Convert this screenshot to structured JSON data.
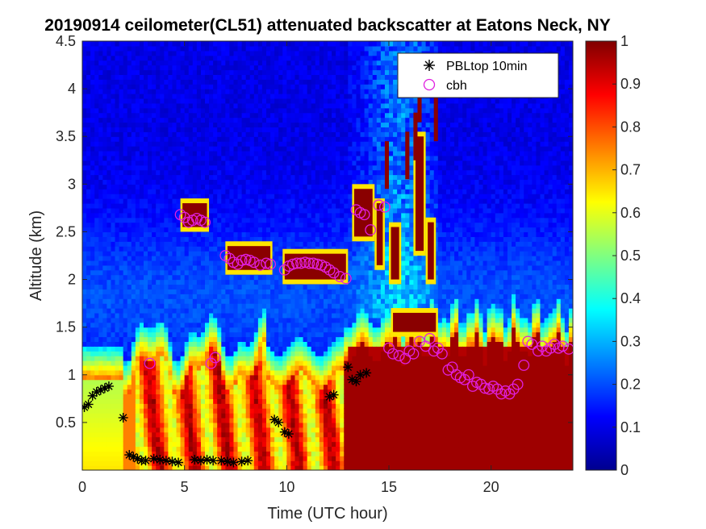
{
  "chart_data": {
    "type": "heatmap",
    "title": "20190914 ceilometer(CL51) attenuated backscatter at Eatons Neck, NY",
    "xlabel": "Time (UTC hour)",
    "ylabel": "Altitude (km)",
    "xlim": [
      0,
      24
    ],
    "ylim": [
      0,
      4.5
    ],
    "xticks": [
      0,
      5,
      10,
      15,
      20
    ],
    "xtick_labels": [
      "0",
      "5",
      "10",
      "15",
      "20"
    ],
    "yticks": [
      0.5,
      1,
      1.5,
      2,
      2.5,
      3,
      3.5,
      4,
      4.5
    ],
    "ytick_labels": [
      "0.5",
      "1",
      "1.5",
      "2",
      "2.5",
      "3",
      "3.5",
      "4",
      "4.5"
    ],
    "colorbar": {
      "colormap": "jet",
      "clim": [
        0,
        1
      ],
      "ticks": [
        0,
        0.1,
        0.2,
        0.3,
        0.4,
        0.5,
        0.6,
        0.7,
        0.8,
        0.9,
        1
      ],
      "tick_labels": [
        "0",
        "0.1",
        "0.2",
        "0.3",
        "0.4",
        "0.5",
        "0.6",
        "0.7",
        "0.8",
        "0.9",
        "1"
      ]
    },
    "legend": {
      "position": "top-right"
    },
    "series": [
      {
        "name": "PBLtop 10min",
        "marker": "asterisk",
        "color": "#000000",
        "points": [
          [
            0.1,
            0.66
          ],
          [
            0.3,
            0.69
          ],
          [
            0.5,
            0.78
          ],
          [
            0.7,
            0.82
          ],
          [
            0.9,
            0.84
          ],
          [
            1.1,
            0.86
          ],
          [
            1.3,
            0.88
          ],
          [
            2.0,
            0.55
          ],
          [
            2.3,
            0.16
          ],
          [
            2.5,
            0.14
          ],
          [
            2.7,
            0.12
          ],
          [
            2.9,
            0.1
          ],
          [
            3.1,
            0.1
          ],
          [
            3.5,
            0.12
          ],
          [
            3.8,
            0.11
          ],
          [
            4.1,
            0.1
          ],
          [
            4.4,
            0.09
          ],
          [
            4.7,
            0.08
          ],
          [
            5.5,
            0.11
          ],
          [
            5.8,
            0.1
          ],
          [
            6.1,
            0.11
          ],
          [
            6.4,
            0.1
          ],
          [
            6.8,
            0.1
          ],
          [
            7.1,
            0.09
          ],
          [
            7.4,
            0.08
          ],
          [
            7.8,
            0.09
          ],
          [
            8.1,
            0.1
          ],
          [
            9.4,
            0.53
          ],
          [
            9.6,
            0.5
          ],
          [
            9.9,
            0.4
          ],
          [
            10.1,
            0.38
          ],
          [
            12.1,
            0.77
          ],
          [
            12.3,
            0.79
          ],
          [
            13.0,
            1.08
          ],
          [
            13.2,
            0.95
          ],
          [
            13.4,
            0.93
          ],
          [
            13.6,
            1.0
          ],
          [
            13.9,
            1.02
          ]
        ]
      },
      {
        "name": "cbh",
        "marker": "circle",
        "color": "#e020e0",
        "points": [
          [
            3.3,
            1.12
          ],
          [
            4.8,
            2.68
          ],
          [
            5.0,
            2.65
          ],
          [
            5.2,
            2.6
          ],
          [
            5.4,
            2.62
          ],
          [
            5.6,
            2.64
          ],
          [
            5.8,
            2.62
          ],
          [
            6.0,
            2.6
          ],
          [
            6.3,
            1.12
          ],
          [
            6.5,
            1.18
          ],
          [
            7.0,
            2.25
          ],
          [
            7.2,
            2.22
          ],
          [
            7.4,
            2.18
          ],
          [
            7.6,
            2.16
          ],
          [
            7.8,
            2.2
          ],
          [
            8.0,
            2.21
          ],
          [
            8.2,
            2.2
          ],
          [
            8.4,
            2.18
          ],
          [
            8.7,
            2.15
          ],
          [
            9.0,
            2.17
          ],
          [
            9.2,
            2.16
          ],
          [
            9.9,
            2.1
          ],
          [
            10.1,
            2.14
          ],
          [
            10.3,
            2.16
          ],
          [
            10.5,
            2.17
          ],
          [
            10.7,
            2.17
          ],
          [
            10.9,
            2.18
          ],
          [
            11.1,
            2.17
          ],
          [
            11.3,
            2.17
          ],
          [
            11.5,
            2.16
          ],
          [
            11.7,
            2.15
          ],
          [
            11.9,
            2.13
          ],
          [
            12.1,
            2.1
          ],
          [
            12.3,
            2.07
          ],
          [
            12.6,
            2.03
          ],
          [
            12.9,
            2.01
          ],
          [
            13.4,
            2.73
          ],
          [
            13.6,
            2.7
          ],
          [
            13.8,
            2.68
          ],
          [
            14.1,
            2.52
          ],
          [
            14.5,
            2.78
          ],
          [
            14.8,
            2.76
          ],
          [
            15.0,
            1.28
          ],
          [
            15.2,
            1.22
          ],
          [
            15.5,
            1.2
          ],
          [
            15.8,
            1.17
          ],
          [
            16.0,
            1.25
          ],
          [
            16.2,
            1.22
          ],
          [
            16.5,
            1.35
          ],
          [
            16.8,
            1.3
          ],
          [
            17.0,
            1.38
          ],
          [
            17.2,
            1.25
          ],
          [
            17.4,
            1.28
          ],
          [
            17.6,
            1.22
          ],
          [
            17.9,
            1.05
          ],
          [
            18.1,
            1.08
          ],
          [
            18.3,
            1.0
          ],
          [
            18.5,
            0.97
          ],
          [
            18.7,
            0.95
          ],
          [
            18.9,
            1.0
          ],
          [
            19.1,
            0.88
          ],
          [
            19.3,
            0.92
          ],
          [
            19.5,
            0.9
          ],
          [
            19.7,
            0.86
          ],
          [
            19.9,
            0.85
          ],
          [
            20.1,
            0.88
          ],
          [
            20.3,
            0.85
          ],
          [
            20.5,
            0.8
          ],
          [
            20.7,
            0.83
          ],
          [
            20.9,
            0.8
          ],
          [
            21.1,
            0.85
          ],
          [
            21.3,
            0.9
          ],
          [
            21.6,
            1.1
          ],
          [
            21.8,
            1.35
          ],
          [
            22.0,
            1.32
          ],
          [
            22.3,
            1.25
          ],
          [
            22.5,
            1.3
          ],
          [
            22.7,
            1.25
          ],
          [
            22.9,
            1.28
          ],
          [
            23.1,
            1.32
          ],
          [
            23.3,
            1.28
          ],
          [
            23.5,
            1.3
          ],
          [
            23.8,
            1.27
          ]
        ]
      }
    ]
  }
}
